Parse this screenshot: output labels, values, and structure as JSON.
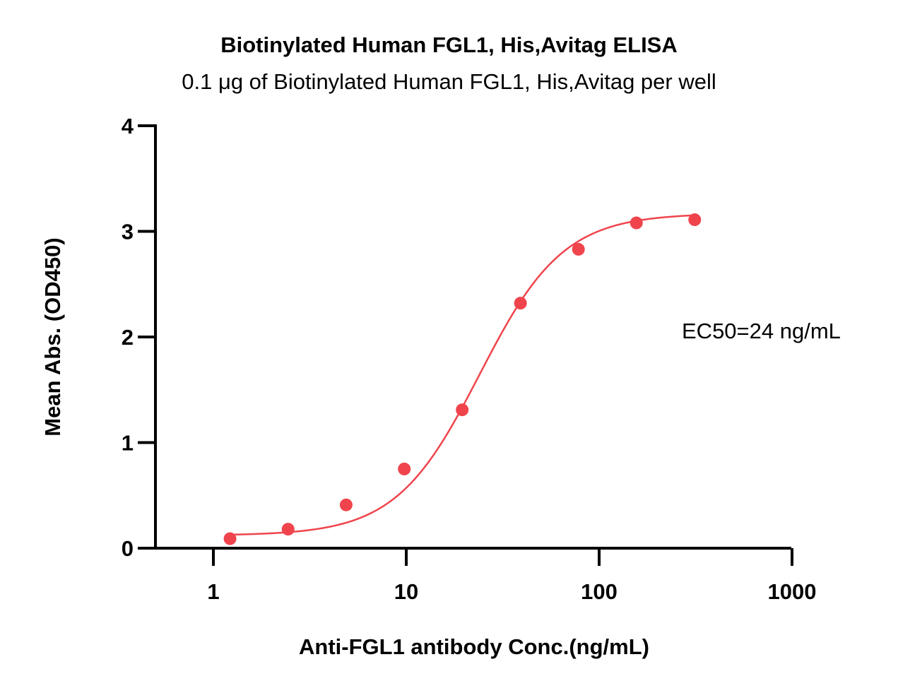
{
  "chart_data": {
    "type": "scatter",
    "title": "Biotinylated Human FGL1, His,Avitag ELISA",
    "subtitle": "0.1 μg of Biotinylated Human FGL1, His,Avitag per well",
    "xlabel": "Anti-FGL1 antibody Conc.(ng/mL)",
    "ylabel": "Mean Abs. (OD450)",
    "xscale": "log",
    "xlim": [
      0.5,
      1000
    ],
    "ylim": [
      0,
      4
    ],
    "xticks": [
      1,
      10,
      100,
      1000
    ],
    "xtick_labels": [
      "1",
      "10",
      "100",
      "1000"
    ],
    "yticks": [
      0,
      1,
      2,
      3,
      4
    ],
    "ytick_labels": [
      "0",
      "1",
      "2",
      "3",
      "4"
    ],
    "grid": false,
    "color": "#f0444c",
    "series": [
      {
        "x": [
          1.22,
          2.44,
          4.88,
          9.77,
          19.5,
          39.1,
          78.1,
          156,
          313
        ],
        "y": [
          0.09,
          0.18,
          0.41,
          0.75,
          1.31,
          2.32,
          2.83,
          3.08,
          3.11
        ]
      }
    ],
    "fit": {
      "model": "4PL",
      "bottom": 0.12,
      "top": 3.17,
      "ec50": 24,
      "hill": 2.0
    },
    "annotations": [
      "EC50=24 ng/mL"
    ]
  }
}
